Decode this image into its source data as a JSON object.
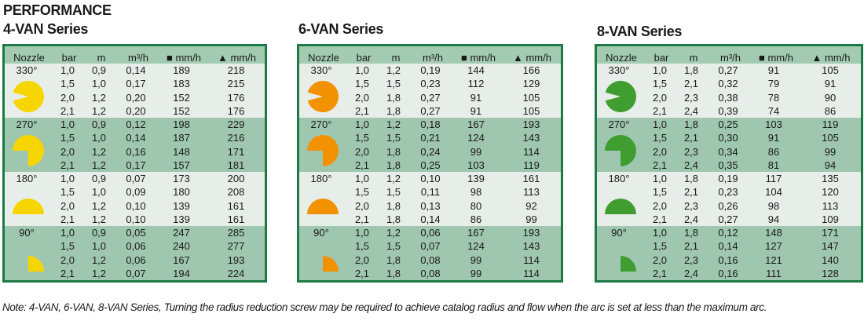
{
  "heading": "PERFORMANCE",
  "columns": [
    "Nozzle",
    "bar",
    "m",
    "m³/h",
    "■ mm/h",
    "▲ mm/h"
  ],
  "tables": [
    {
      "title": "4-VAN Series",
      "color": "#f7d500",
      "groups": [
        {
          "arc": "330°",
          "rows": [
            [
              "1,0",
              "0,9",
              "0,14",
              "189",
              "218"
            ],
            [
              "1,5",
              "1,0",
              "0,17",
              "183",
              "215"
            ],
            [
              "2,0",
              "1,2",
              "0,20",
              "152",
              "176"
            ],
            [
              "2,1",
              "1,2",
              "0,20",
              "152",
              "176"
            ]
          ]
        },
        {
          "arc": "270°",
          "rows": [
            [
              "1,0",
              "0,9",
              "0,12",
              "198",
              "229"
            ],
            [
              "1,5",
              "1,0",
              "0,14",
              "187",
              "216"
            ],
            [
              "2,0",
              "1,2",
              "0,16",
              "148",
              "171"
            ],
            [
              "2,1",
              "1,2",
              "0,17",
              "157",
              "181"
            ]
          ]
        },
        {
          "arc": "180°",
          "rows": [
            [
              "1,0",
              "0,9",
              "0,07",
              "173",
              "200"
            ],
            [
              "1,5",
              "1,0",
              "0,09",
              "180",
              "208"
            ],
            [
              "2,0",
              "1,2",
              "0,10",
              "139",
              "161"
            ],
            [
              "2,1",
              "1,2",
              "0,10",
              "139",
              "161"
            ]
          ]
        },
        {
          "arc": "90°",
          "rows": [
            [
              "1,0",
              "0,9",
              "0,05",
              "247",
              "285"
            ],
            [
              "1,5",
              "1,0",
              "0,06",
              "240",
              "277"
            ],
            [
              "2,0",
              "1,2",
              "0,06",
              "167",
              "193"
            ],
            [
              "2,1",
              "1,2",
              "0,07",
              "194",
              "224"
            ]
          ]
        }
      ]
    },
    {
      "title": "6-VAN Series",
      "color": "#f39200",
      "groups": [
        {
          "arc": "330°",
          "rows": [
            [
              "1,0",
              "1,2",
              "0,19",
              "144",
              "166"
            ],
            [
              "1,5",
              "1,5",
              "0,23",
              "112",
              "129"
            ],
            [
              "2,0",
              "1,8",
              "0,27",
              "91",
              "105"
            ],
            [
              "2,1",
              "1,8",
              "0,27",
              "91",
              "105"
            ]
          ]
        },
        {
          "arc": "270°",
          "rows": [
            [
              "1,0",
              "1,2",
              "0,18",
              "167",
              "193"
            ],
            [
              "1,5",
              "1,5",
              "0,21",
              "124",
              "143"
            ],
            [
              "2,0",
              "1,8",
              "0,24",
              "99",
              "114"
            ],
            [
              "2,1",
              "1,8",
              "0,25",
              "103",
              "119"
            ]
          ]
        },
        {
          "arc": "180°",
          "rows": [
            [
              "1,0",
              "1,2",
              "0,10",
              "139",
              "161"
            ],
            [
              "1,5",
              "1,5",
              "0,11",
              "98",
              "113"
            ],
            [
              "2,0",
              "1,8",
              "0,13",
              "80",
              "92"
            ],
            [
              "2,1",
              "1,8",
              "0,14",
              "86",
              "99"
            ]
          ]
        },
        {
          "arc": "90°",
          "rows": [
            [
              "1,0",
              "1,2",
              "0,06",
              "167",
              "193"
            ],
            [
              "1,5",
              "1,5",
              "0,07",
              "124",
              "143"
            ],
            [
              "2,0",
              "1,8",
              "0,08",
              "99",
              "114"
            ],
            [
              "2,1",
              "1,8",
              "0,08",
              "99",
              "114"
            ]
          ]
        }
      ]
    },
    {
      "title": "8-VAN Series",
      "color": "#3f9e2f",
      "groups": [
        {
          "arc": "330°",
          "rows": [
            [
              "1,0",
              "1,8",
              "0,27",
              "91",
              "105"
            ],
            [
              "1,5",
              "2,1",
              "0,32",
              "79",
              "91"
            ],
            [
              "2,0",
              "2,3",
              "0,38",
              "78",
              "90"
            ],
            [
              "2,1",
              "2,4",
              "0,39",
              "74",
              "86"
            ]
          ]
        },
        {
          "arc": "270°",
          "rows": [
            [
              "1,0",
              "1,8",
              "0,25",
              "103",
              "119"
            ],
            [
              "1,5",
              "2,1",
              "0,30",
              "91",
              "105"
            ],
            [
              "2,0",
              "2,3",
              "0,34",
              "86",
              "99"
            ],
            [
              "2,1",
              "2,4",
              "0,35",
              "81",
              "94"
            ]
          ]
        },
        {
          "arc": "180°",
          "rows": [
            [
              "1,0",
              "1,8",
              "0,19",
              "117",
              "135"
            ],
            [
              "1,5",
              "2,1",
              "0,23",
              "104",
              "120"
            ],
            [
              "2,0",
              "2,3",
              "0,26",
              "98",
              "113"
            ],
            [
              "2,1",
              "2,4",
              "0,27",
              "94",
              "109"
            ]
          ]
        },
        {
          "arc": "90°",
          "rows": [
            [
              "1,0",
              "1,8",
              "0,12",
              "148",
              "171"
            ],
            [
              "1,5",
              "2,1",
              "0,14",
              "127",
              "147"
            ],
            [
              "2,0",
              "2,3",
              "0,16",
              "121",
              "140"
            ],
            [
              "2,1",
              "2,4",
              "0,16",
              "111",
              "128"
            ]
          ]
        }
      ]
    }
  ],
  "note": "Note: 4-VAN, 6-VAN, 8-VAN Series, Turning the radius reduction screw may be required to achieve catalog radius and flow when the arc is set at less than the maximum arc."
}
